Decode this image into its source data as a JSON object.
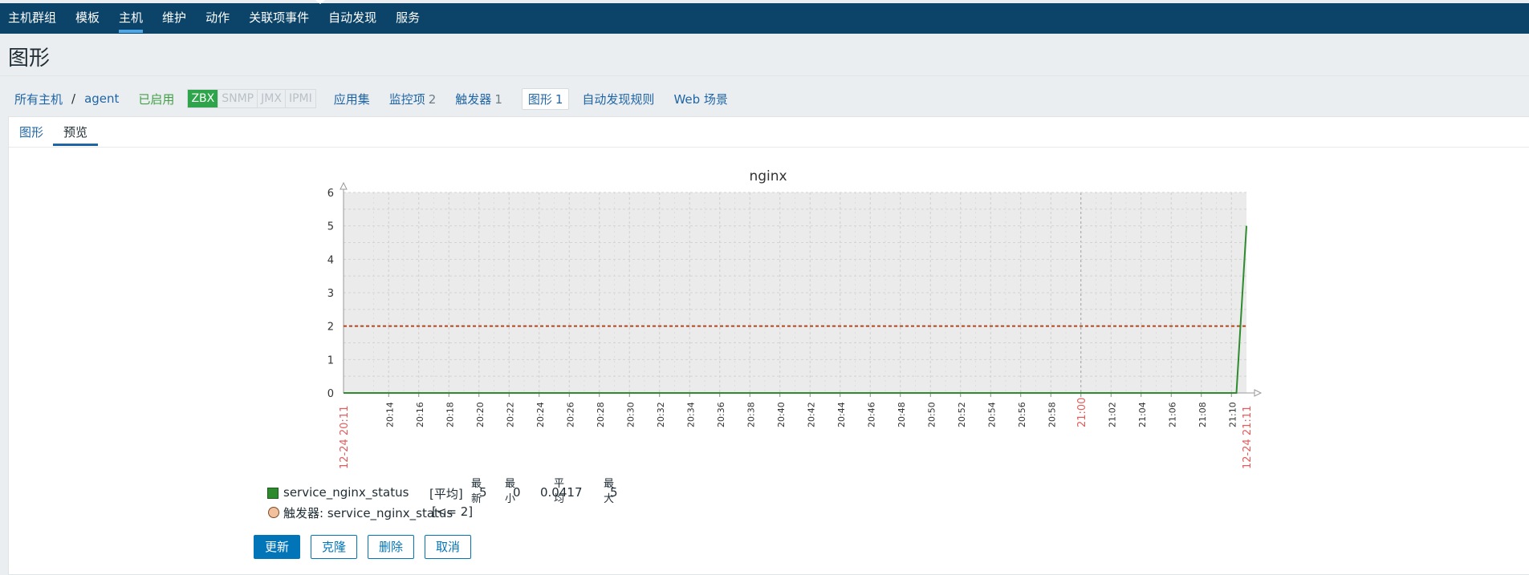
{
  "topnav": {
    "items": [
      "主机群组",
      "模板",
      "主机",
      "维护",
      "动作",
      "关联项事件",
      "自动发现",
      "服务"
    ],
    "active_index": 2
  },
  "page_title": "图形",
  "hostnav": {
    "all_hosts": "所有主机",
    "separator": "/",
    "host": "agent",
    "status": "已启用",
    "badges": [
      "ZBX",
      "SNMP",
      "JMX",
      "IPMI"
    ],
    "badge_active": "ZBX",
    "tabs": [
      {
        "label": "应用集",
        "count": ""
      },
      {
        "label": "监控项",
        "count": "2"
      },
      {
        "label": "触发器",
        "count": "1"
      },
      {
        "label": "图形",
        "count": "1"
      },
      {
        "label": "自动发现规则",
        "count": ""
      },
      {
        "label": "Web 场景",
        "count": ""
      }
    ]
  },
  "subtabs": [
    "图形",
    "预览"
  ],
  "chart_data": {
    "type": "line",
    "title": "nginx",
    "ylim": [
      0,
      6
    ],
    "y_ticks": [
      "0",
      "1",
      "2",
      "3",
      "4",
      "5",
      "6"
    ],
    "x_start_label": "12-24 20:11",
    "x_end_label": "12-24 21:11",
    "x_ticks": [
      "20:14",
      "20:16",
      "20:18",
      "20:20",
      "20:22",
      "20:24",
      "20:26",
      "20:28",
      "20:30",
      "20:32",
      "20:34",
      "20:36",
      "20:38",
      "20:40",
      "20:42",
      "20:44",
      "20:46",
      "20:48",
      "20:50",
      "20:52",
      "20:54",
      "20:56",
      "20:58",
      "21:00",
      "21:02",
      "21:04",
      "21:06",
      "21:08",
      "21:10"
    ],
    "highlight_tick": "21:00",
    "series": [
      {
        "name": "service_nginx_status",
        "color": "#2e8b2e",
        "points": [
          [
            "20:11",
            0
          ],
          [
            "21:10:20",
            0
          ],
          [
            "21:11",
            5
          ]
        ]
      }
    ],
    "trigger": {
      "label": "触发器: service_nginx_status",
      "condition": "[<= 2]",
      "value": 2,
      "color": "#b0471e"
    },
    "grid": true,
    "legend_placement": "bottom-left"
  },
  "legend": {
    "series_name": "service_nginx_status",
    "func": "[平均]",
    "stat_headers": [
      "最新",
      "最小",
      "平均",
      "最大"
    ],
    "stats": [
      "5",
      "0",
      "0.0417",
      "5"
    ],
    "trigger_label": "触发器: service_nginx_status",
    "trigger_condition": "[<= 2]"
  },
  "buttons": {
    "update": "更新",
    "clone": "克隆",
    "delete": "删除",
    "cancel": "取消"
  },
  "colors": {
    "nav": "#0b4468",
    "link": "#1f65a6",
    "enabled": "#429e47",
    "primary": "#0275b8",
    "highlight": "#e35b5b"
  }
}
